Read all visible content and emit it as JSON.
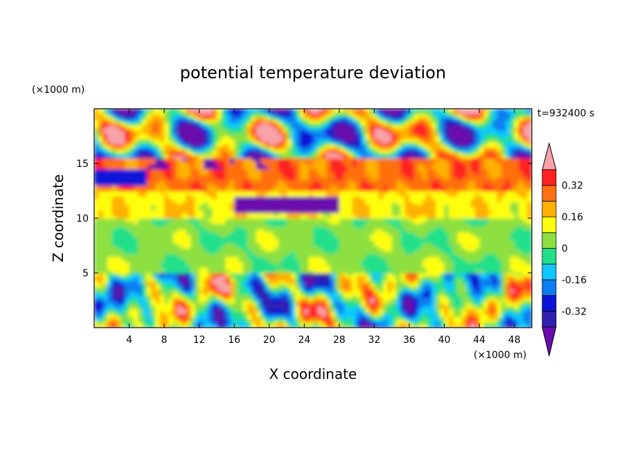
{
  "chart_data": {
    "type": "heatmap",
    "title": "potential temperature deviation",
    "xlabel": "X coordinate",
    "ylabel": "Z coordinate",
    "x_unit": "(×1000 m)",
    "y_unit": "(×1000 m)",
    "time_label": "t=932400 s",
    "xlim": [
      0,
      50
    ],
    "ylim": [
      0,
      20
    ],
    "x_ticks": [
      4,
      8,
      12,
      16,
      20,
      24,
      28,
      32,
      36,
      40,
      44,
      48
    ],
    "y_ticks": [
      5,
      10,
      15
    ],
    "colorbar": {
      "levels": [
        -0.4,
        -0.32,
        -0.24,
        -0.16,
        -0.08,
        0,
        0.08,
        0.16,
        0.24,
        0.32,
        0.4
      ],
      "tick_labels": [
        "0.32",
        "0.16",
        "0",
        "-0.16",
        "-0.32"
      ],
      "tick_values": [
        0.32,
        0.16,
        0,
        -0.16,
        -0.32
      ],
      "colors": [
        "#6a0dad",
        "#3020b0",
        "#0a14d8",
        "#0a7ef0",
        "#10c8ff",
        "#22e08a",
        "#8ee040",
        "#ffff10",
        "#ffb000",
        "#ff7010",
        "#ff2020",
        "#f7a3a8"
      ],
      "extend": "both"
    },
    "layers": [
      {
        "z_range": [
          0,
          5
        ],
        "pattern": "convective plumes",
        "range": [
          -0.4,
          0.4
        ]
      },
      {
        "z_range": [
          5,
          10
        ],
        "pattern": "near-zero band",
        "range": [
          -0.16,
          0.16
        ]
      },
      {
        "z_range": [
          10,
          12.5
        ],
        "pattern": "positive band",
        "range": [
          0.08,
          0.24
        ]
      },
      {
        "z_range": [
          12.5,
          15.5
        ],
        "pattern": "strong positive band",
        "range": [
          0.24,
          0.4
        ]
      },
      {
        "z_range": [
          15.5,
          20
        ],
        "pattern": "large alternating patches",
        "range": [
          -0.4,
          0.4
        ]
      }
    ]
  }
}
